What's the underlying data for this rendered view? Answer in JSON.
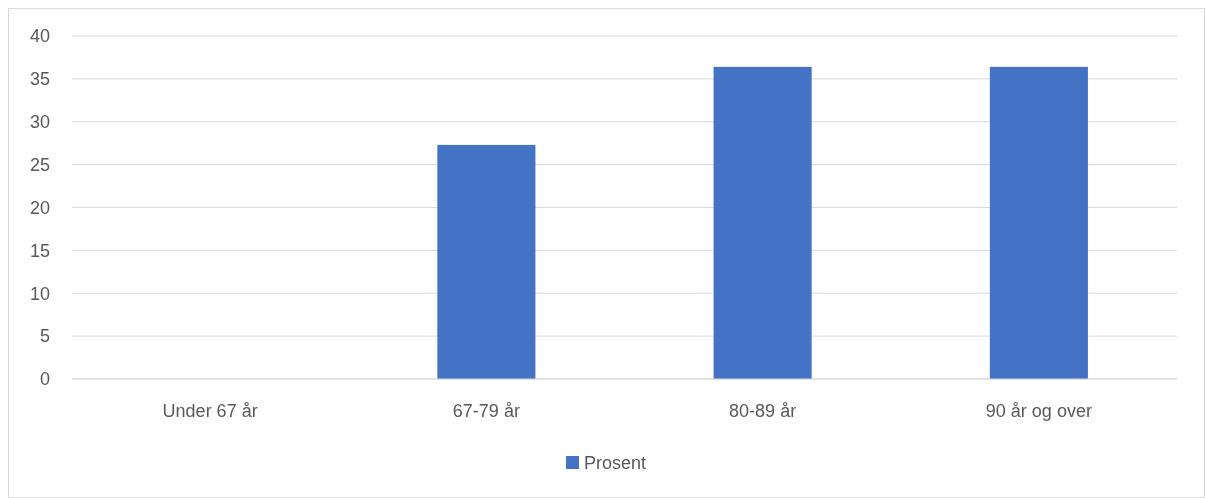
{
  "chart_data": {
    "type": "bar",
    "categories": [
      "Under 67 år",
      "67-79 år",
      "80-89 år",
      "90 år og over"
    ],
    "series": [
      {
        "name": "Prosent",
        "color": "#4472c4",
        "values": [
          0,
          27.3,
          36.4,
          36.4
        ]
      }
    ],
    "ylim": [
      0,
      40
    ],
    "yticks": [
      0,
      5,
      10,
      15,
      20,
      25,
      30,
      35,
      40
    ],
    "grid": "y",
    "legend": "bottom"
  }
}
